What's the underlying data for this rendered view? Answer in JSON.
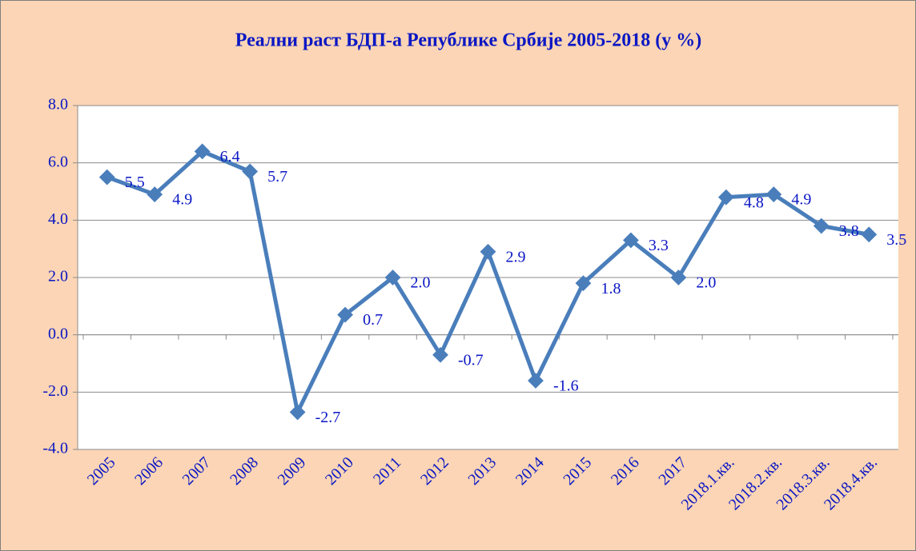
{
  "chart_data": {
    "type": "line",
    "title": "Реални раст БДП-а Републике Србије 2005-2018 (у %)",
    "categories": [
      "2005",
      "2006",
      "2007",
      "2008",
      "2009",
      "2010",
      "2011",
      "2012",
      "2013",
      "2014",
      "2015",
      "2016",
      "2017",
      "2018.1.кв.",
      "2018.2.кв.",
      "2018.3.кв.",
      "2018.4.кв."
    ],
    "series": [
      {
        "name": "Реални раст БДП-а",
        "color": "#4a7ebb",
        "values": [
          5.5,
          4.9,
          6.4,
          5.7,
          -2.7,
          0.7,
          2.0,
          -0.7,
          2.9,
          -1.6,
          1.8,
          3.3,
          2.0,
          4.8,
          4.9,
          3.8,
          3.5
        ],
        "value_labels": [
          "5.5",
          "4.9",
          "6.4",
          "5.7",
          "-2.7",
          "0.7",
          "2.0",
          "-0.7",
          "2.9",
          "-1.6",
          "1.8",
          "3.3",
          "2.0",
          "4.8",
          "4.9",
          "3.8",
          "3.5"
        ]
      }
    ],
    "ylim": [
      -4,
      8
    ],
    "yticks": [
      {
        "value": -4,
        "label": "-4.0"
      },
      {
        "value": -2,
        "label": "-2.0"
      },
      {
        "value": 0,
        "label": "0.0"
      },
      {
        "value": 2,
        "label": "2.0"
      },
      {
        "value": 4,
        "label": "4.0"
      },
      {
        "value": 6,
        "label": "6.0"
      },
      {
        "value": 8,
        "label": "8.0"
      }
    ],
    "grid": true
  }
}
